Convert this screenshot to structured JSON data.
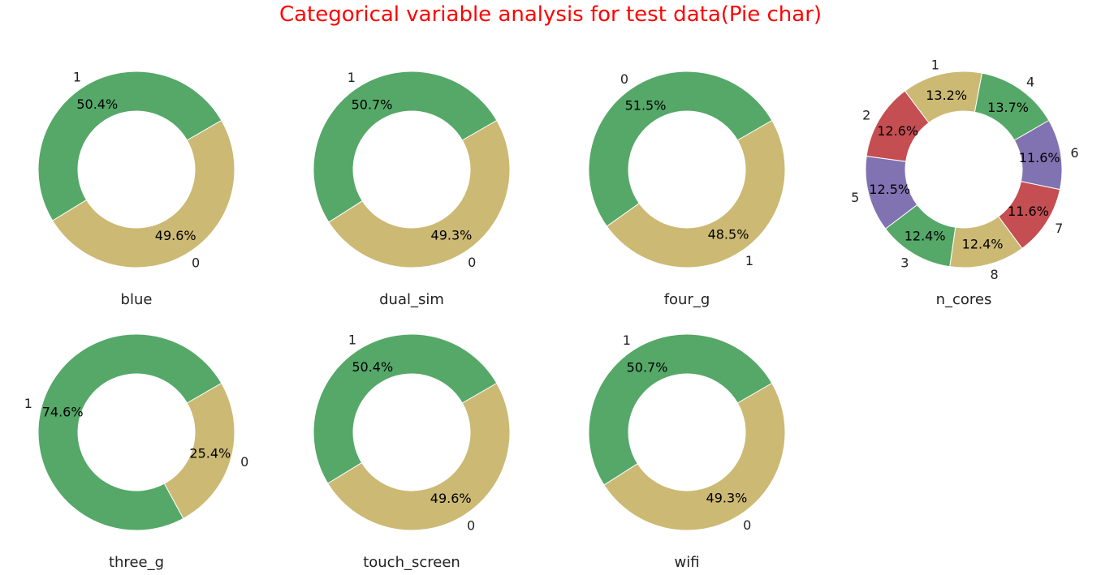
{
  "figure": {
    "title": "Categorical variable analysis for test data(Pie char)",
    "title_color": "#ff0000"
  },
  "chart_data": [
    {
      "type": "pie",
      "title": "blue",
      "donut": true,
      "start_angle": 30,
      "slices": [
        {
          "label": "1",
          "value": 50.4,
          "pct_label": "50.4%",
          "color": "#55a868"
        },
        {
          "label": "0",
          "value": 49.6,
          "pct_label": "49.6%",
          "color": "#ccb974"
        }
      ]
    },
    {
      "type": "pie",
      "title": "dual_sim",
      "donut": true,
      "start_angle": 30,
      "slices": [
        {
          "label": "1",
          "value": 50.7,
          "pct_label": "50.7%",
          "color": "#55a868"
        },
        {
          "label": "0",
          "value": 49.3,
          "pct_label": "49.3%",
          "color": "#ccb974"
        }
      ]
    },
    {
      "type": "pie",
      "title": "four_g",
      "donut": true,
      "start_angle": 30,
      "slices": [
        {
          "label": "0",
          "value": 51.5,
          "pct_label": "51.5%",
          "color": "#55a868"
        },
        {
          "label": "1",
          "value": 48.5,
          "pct_label": "48.5%",
          "color": "#ccb974"
        }
      ]
    },
    {
      "type": "pie",
      "title": "n_cores",
      "donut": true,
      "start_angle": 30,
      "slices": [
        {
          "label": "4",
          "value": 13.7,
          "pct_label": "13.7%",
          "color": "#55a868"
        },
        {
          "label": "1",
          "value": 13.2,
          "pct_label": "13.2%",
          "color": "#ccb974"
        },
        {
          "label": "2",
          "value": 12.6,
          "pct_label": "12.6%",
          "color": "#c44e52"
        },
        {
          "label": "5",
          "value": 12.5,
          "pct_label": "12.5%",
          "color": "#8172b2"
        },
        {
          "label": "3",
          "value": 12.4,
          "pct_label": "12.4%",
          "color": "#55a868"
        },
        {
          "label": "8",
          "value": 12.4,
          "pct_label": "12.4%",
          "color": "#ccb974"
        },
        {
          "label": "7",
          "value": 11.6,
          "pct_label": "11.6%",
          "color": "#c44e52"
        },
        {
          "label": "6",
          "value": 11.6,
          "pct_label": "11.6%",
          "color": "#8172b2"
        }
      ]
    },
    {
      "type": "pie",
      "title": "three_g",
      "donut": true,
      "start_angle": 30,
      "slices": [
        {
          "label": "1",
          "value": 74.6,
          "pct_label": "74.6%",
          "color": "#55a868"
        },
        {
          "label": "0",
          "value": 25.4,
          "pct_label": "25.4%",
          "color": "#ccb974"
        }
      ]
    },
    {
      "type": "pie",
      "title": "touch_screen",
      "donut": true,
      "start_angle": 30,
      "slices": [
        {
          "label": "1",
          "value": 50.4,
          "pct_label": "50.4%",
          "color": "#55a868"
        },
        {
          "label": "0",
          "value": 49.6,
          "pct_label": "49.6%",
          "color": "#ccb974"
        }
      ]
    },
    {
      "type": "pie",
      "title": "wifi",
      "donut": true,
      "start_angle": 30,
      "slices": [
        {
          "label": "1",
          "value": 50.7,
          "pct_label": "50.7%",
          "color": "#55a868"
        },
        {
          "label": "0",
          "value": 49.3,
          "pct_label": "49.3%",
          "color": "#ccb974"
        }
      ]
    }
  ]
}
